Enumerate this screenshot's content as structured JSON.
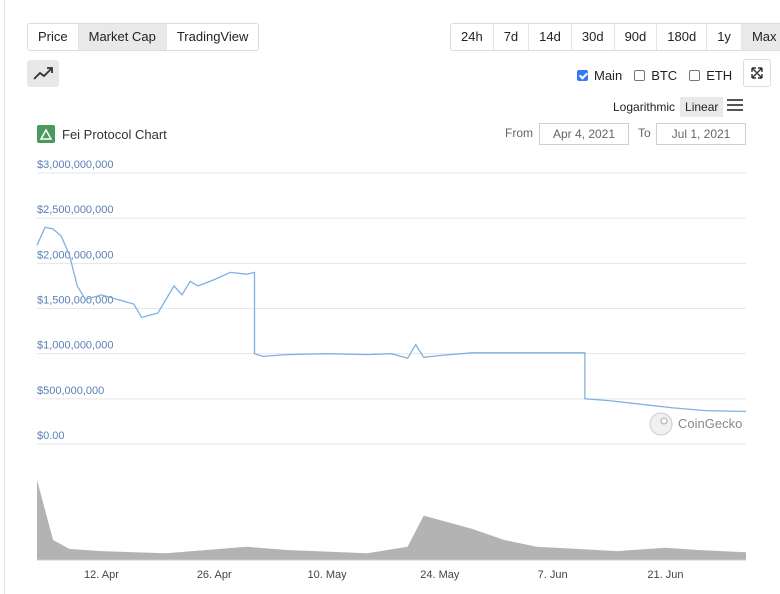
{
  "tabs": [
    "Price",
    "Market Cap",
    "TradingView"
  ],
  "active_tab": "Market Cap",
  "ranges": [
    "24h",
    "7d",
    "14d",
    "30d",
    "90d",
    "180d",
    "1y",
    "Max"
  ],
  "active_range": "Max",
  "compare": [
    {
      "label": "Main",
      "checked": true
    },
    {
      "label": "BTC",
      "checked": false
    },
    {
      "label": "ETH",
      "checked": false
    }
  ],
  "scale": {
    "logarithmic": "Logarithmic",
    "linear": "Linear",
    "active": "Linear"
  },
  "chart_header": {
    "title": "Fei Protocol Chart",
    "from_label": "From",
    "from_value": "Apr 4, 2021",
    "to_label": "To",
    "to_value": "Jul 1, 2021"
  },
  "watermark": "CoinGecko",
  "icons": {
    "trend": "trend-line-icon",
    "expand": "expand-icon",
    "menu": "hamburger-menu-icon",
    "logo": "coingecko-icon"
  },
  "colors": {
    "line": "#7fb1e3",
    "grid": "#e6e6e6",
    "axis_label": "#5a7fb5",
    "volume": "#9a9a9a"
  },
  "chart_data": {
    "type": "line",
    "title": "Fei Protocol Chart",
    "ylabel": "",
    "xlabel": "",
    "ylim": [
      0,
      3000000000
    ],
    "yticks": [
      0,
      500000000,
      1000000000,
      1500000000,
      2000000000,
      2500000000,
      3000000000
    ],
    "ytick_labels": [
      "$0.00",
      "$500,000,000",
      "$1,000,000,000",
      "$1,500,000,000",
      "$2,000,000,000",
      "$2,500,000,000",
      "$3,000,000,000"
    ],
    "xlim": [
      "2021-04-04",
      "2021-07-01"
    ],
    "xticks": [
      "2021-04-12",
      "2021-04-26",
      "2021-05-10",
      "2021-05-24",
      "2021-06-07",
      "2021-06-21"
    ],
    "xtick_labels": [
      "12. Apr",
      "26. Apr",
      "10. May",
      "24. May",
      "7. Jun",
      "21. Jun"
    ],
    "grid": true,
    "series": [
      {
        "name": "Market Cap",
        "x": [
          "2021-04-04",
          "2021-04-05",
          "2021-04-06",
          "2021-04-07",
          "2021-04-08",
          "2021-04-09",
          "2021-04-10",
          "2021-04-12",
          "2021-04-14",
          "2021-04-16",
          "2021-04-17",
          "2021-04-19",
          "2021-04-20",
          "2021-04-21",
          "2021-04-22",
          "2021-04-23",
          "2021-04-24",
          "2021-04-26",
          "2021-04-27",
          "2021-04-28",
          "2021-04-30",
          "2021-05-01",
          "2021-05-01",
          "2021-05-02",
          "2021-05-05",
          "2021-05-10",
          "2021-05-15",
          "2021-05-18",
          "2021-05-20",
          "2021-05-21",
          "2021-05-22",
          "2021-05-24",
          "2021-05-28",
          "2021-06-01",
          "2021-06-05",
          "2021-06-10",
          "2021-06-11",
          "2021-06-11",
          "2021-06-14",
          "2021-06-18",
          "2021-06-22",
          "2021-06-26",
          "2021-07-01"
        ],
        "y": [
          2200000000,
          2400000000,
          2380000000,
          2300000000,
          2100000000,
          1750000000,
          1600000000,
          1650000000,
          1600000000,
          1550000000,
          1400000000,
          1450000000,
          1600000000,
          1750000000,
          1650000000,
          1800000000,
          1750000000,
          1820000000,
          1860000000,
          1900000000,
          1880000000,
          1900000000,
          1000000000,
          970000000,
          990000000,
          1000000000,
          990000000,
          1000000000,
          950000000,
          1100000000,
          960000000,
          980000000,
          1010000000,
          1010000000,
          1010000000,
          1010000000,
          1010000000,
          500000000,
          480000000,
          440000000,
          400000000,
          370000000,
          360000000
        ]
      }
    ],
    "volume": {
      "x": [
        "2021-04-04",
        "2021-04-06",
        "2021-04-08",
        "2021-04-12",
        "2021-04-20",
        "2021-04-30",
        "2021-05-05",
        "2021-05-15",
        "2021-05-20",
        "2021-05-22",
        "2021-05-25",
        "2021-05-28",
        "2021-06-01",
        "2021-06-05",
        "2021-06-10",
        "2021-06-15",
        "2021-06-21",
        "2021-06-25",
        "2021-07-01"
      ],
      "y": [
        72,
        18,
        10,
        8,
        6,
        12,
        9,
        6,
        12,
        40,
        34,
        28,
        18,
        12,
        10,
        8,
        11,
        9,
        7
      ]
    }
  }
}
